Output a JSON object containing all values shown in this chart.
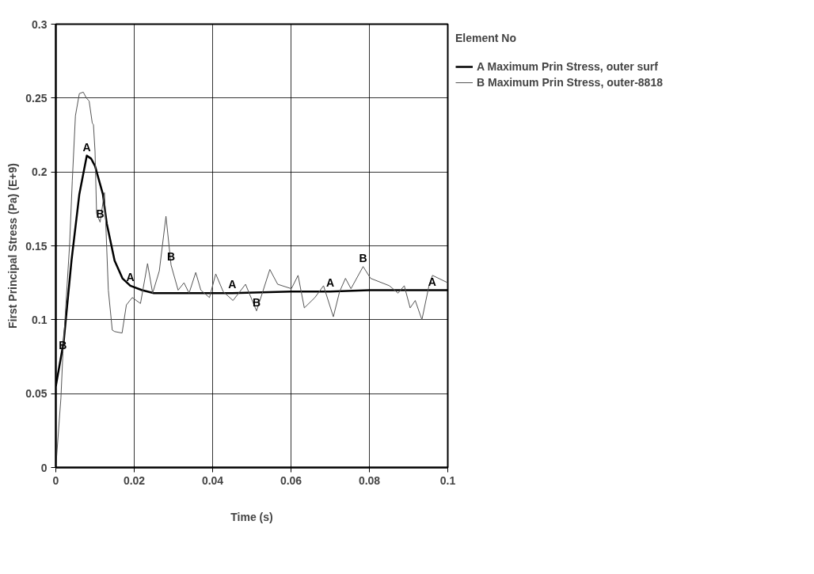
{
  "chart_data": {
    "type": "line",
    "xlabel": "Time (s)",
    "ylabel": "First Principal Stress (Pa) (E+9)",
    "legend_title": "Element No",
    "legend": "top right",
    "grid": true,
    "marker": "none",
    "xlim": [
      0,
      0.1
    ],
    "ylim": [
      0,
      0.3
    ],
    "xticks": [
      0,
      0.02,
      0.04,
      0.06,
      0.08,
      0.1
    ],
    "yticks": [
      0,
      0.05,
      0.1,
      0.15,
      0.2,
      0.25,
      0.3
    ],
    "series": [
      {
        "name": "A Maximum Prin Stress, outer surf",
        "color": "#000000",
        "x": [
          0,
          0.002,
          0.004,
          0.006,
          0.0079,
          0.009,
          0.01,
          0.012,
          0.013,
          0.015,
          0.017,
          0.019,
          0.022,
          0.025,
          0.03,
          0.04,
          0.045,
          0.06,
          0.07,
          0.08,
          0.096,
          0.1
        ],
        "values": [
          0.055,
          0.085,
          0.14,
          0.185,
          0.211,
          0.209,
          0.204,
          0.185,
          0.165,
          0.14,
          0.128,
          0.123,
          0.12,
          0.118,
          0.118,
          0.118,
          0.118,
          0.119,
          0.119,
          0.12,
          0.12,
          0.12
        ]
      },
      {
        "name": "B Maximum Prin Stress, outer-8818",
        "color": "#555555",
        "x": [
          0,
          0.0013,
          0.0018,
          0.0024,
          0.0035,
          0.0042,
          0.005,
          0.006,
          0.007,
          0.0078,
          0.0085,
          0.0093,
          0.0096,
          0.01,
          0.0104,
          0.0113,
          0.0124,
          0.0127,
          0.0134,
          0.0144,
          0.015,
          0.0169,
          0.018,
          0.0195,
          0.0216,
          0.0234,
          0.0247,
          0.0264,
          0.0281,
          0.0294,
          0.0312,
          0.0327,
          0.034,
          0.0357,
          0.037,
          0.0392,
          0.0408,
          0.0427,
          0.0452,
          0.0484,
          0.0512,
          0.0528,
          0.0546,
          0.0566,
          0.0601,
          0.0618,
          0.0634,
          0.0661,
          0.0683,
          0.0708,
          0.0724,
          0.0739,
          0.0753,
          0.0784,
          0.0803,
          0.0851,
          0.0873,
          0.0889,
          0.0904,
          0.0917,
          0.0934,
          0.0952,
          0.0961,
          0.1
        ],
        "values": [
          0,
          0.047,
          0.077,
          0.103,
          0.15,
          0.194,
          0.238,
          0.253,
          0.254,
          0.25,
          0.248,
          0.233,
          0.232,
          0.214,
          0.172,
          0.166,
          0.186,
          0.168,
          0.12,
          0.093,
          0.092,
          0.091,
          0.11,
          0.115,
          0.111,
          0.138,
          0.118,
          0.133,
          0.17,
          0.137,
          0.12,
          0.125,
          0.118,
          0.132,
          0.12,
          0.115,
          0.131,
          0.119,
          0.113,
          0.124,
          0.106,
          0.119,
          0.134,
          0.124,
          0.121,
          0.13,
          0.108,
          0.115,
          0.123,
          0.102,
          0.119,
          0.128,
          0.121,
          0.136,
          0.128,
          0.123,
          0.118,
          0.123,
          0.108,
          0.113,
          0.1,
          0.123,
          0.13,
          0.125
        ]
      }
    ],
    "annotations": [
      {
        "text": "A",
        "x": 0.0079,
        "y": 0.211
      },
      {
        "text": "A",
        "x": 0.019,
        "y": 0.123
      },
      {
        "text": "A",
        "x": 0.045,
        "y": 0.118
      },
      {
        "text": "A",
        "x": 0.07,
        "y": 0.119
      },
      {
        "text": "A",
        "x": 0.096,
        "y": 0.12
      },
      {
        "text": "B",
        "x": 0.0018,
        "y": 0.077
      },
      {
        "text": "B",
        "x": 0.0113,
        "y": 0.166
      },
      {
        "text": "B",
        "x": 0.0294,
        "y": 0.137
      },
      {
        "text": "B",
        "x": 0.0512,
        "y": 0.106
      },
      {
        "text": "B",
        "x": 0.0784,
        "y": 0.136
      }
    ]
  }
}
